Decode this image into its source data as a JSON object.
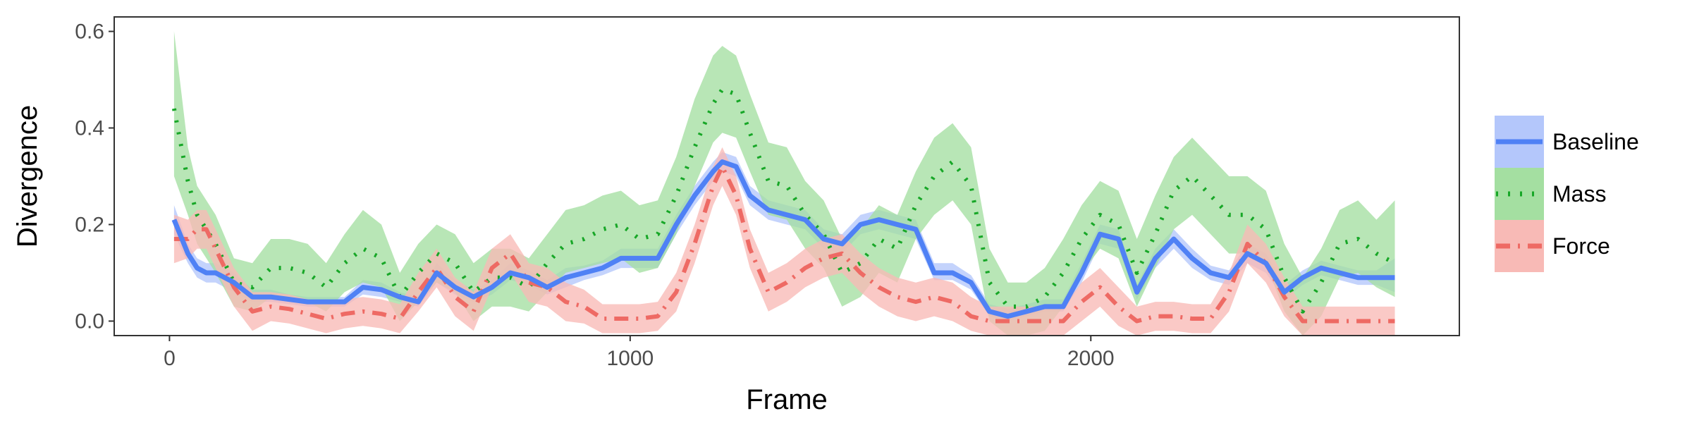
{
  "chart_data": {
    "type": "line",
    "title": "",
    "xlabel": "Frame",
    "ylabel": "Divergence",
    "xlim": [
      -120,
      2800
    ],
    "ylim": [
      -0.03,
      0.63
    ],
    "xticks": [
      0,
      1000,
      2000
    ],
    "xtick_labels": [
      "0",
      "1000",
      "2000"
    ],
    "yticks": [
      0.0,
      0.2,
      0.4,
      0.6
    ],
    "ytick_labels": [
      "0.0",
      "0.2",
      "0.4",
      "0.6"
    ],
    "grid": false,
    "legend_position": "right",
    "x": [
      10,
      40,
      60,
      80,
      100,
      140,
      180,
      220,
      260,
      300,
      340,
      380,
      420,
      460,
      500,
      540,
      580,
      620,
      660,
      700,
      740,
      780,
      820,
      860,
      900,
      940,
      980,
      1020,
      1060,
      1100,
      1140,
      1180,
      1200,
      1230,
      1260,
      1300,
      1340,
      1380,
      1420,
      1460,
      1500,
      1540,
      1580,
      1620,
      1660,
      1700,
      1740,
      1780,
      1820,
      1860,
      1900,
      1940,
      1980,
      2020,
      2060,
      2100,
      2140,
      2180,
      2220,
      2260,
      2300,
      2340,
      2380,
      2420,
      2460,
      2500,
      2540,
      2580,
      2620,
      2660
    ],
    "series": [
      {
        "name": "Baseline",
        "color": "#4f81f5",
        "band_color": "#b4c7fb",
        "dash": "solid",
        "values": [
          0.21,
          0.14,
          0.11,
          0.1,
          0.1,
          0.08,
          0.05,
          0.05,
          0.045,
          0.04,
          0.04,
          0.04,
          0.07,
          0.065,
          0.05,
          0.04,
          0.1,
          0.07,
          0.05,
          0.07,
          0.1,
          0.09,
          0.07,
          0.09,
          0.1,
          0.11,
          0.13,
          0.13,
          0.13,
          0.2,
          0.26,
          0.31,
          0.33,
          0.32,
          0.26,
          0.23,
          0.22,
          0.21,
          0.17,
          0.16,
          0.2,
          0.21,
          0.2,
          0.19,
          0.1,
          0.1,
          0.08,
          0.02,
          0.01,
          0.02,
          0.03,
          0.03,
          0.1,
          0.18,
          0.17,
          0.06,
          0.13,
          0.17,
          0.13,
          0.1,
          0.09,
          0.14,
          0.12,
          0.06,
          0.09,
          0.11,
          0.1,
          0.09,
          0.09,
          0.09
        ],
        "lower": [
          0.18,
          0.12,
          0.09,
          0.08,
          0.08,
          0.06,
          0.04,
          0.04,
          0.035,
          0.03,
          0.03,
          0.03,
          0.055,
          0.05,
          0.04,
          0.03,
          0.08,
          0.055,
          0.04,
          0.055,
          0.085,
          0.075,
          0.055,
          0.07,
          0.085,
          0.095,
          0.11,
          0.11,
          0.11,
          0.18,
          0.24,
          0.29,
          0.31,
          0.3,
          0.24,
          0.21,
          0.2,
          0.19,
          0.15,
          0.14,
          0.18,
          0.19,
          0.18,
          0.17,
          0.085,
          0.085,
          0.065,
          0.01,
          0.0,
          0.01,
          0.02,
          0.02,
          0.08,
          0.16,
          0.15,
          0.045,
          0.11,
          0.15,
          0.11,
          0.085,
          0.075,
          0.12,
          0.1,
          0.045,
          0.075,
          0.095,
          0.085,
          0.075,
          0.075,
          0.06
        ],
        "upper": [
          0.24,
          0.16,
          0.13,
          0.12,
          0.12,
          0.1,
          0.065,
          0.065,
          0.055,
          0.05,
          0.05,
          0.05,
          0.085,
          0.08,
          0.06,
          0.05,
          0.12,
          0.085,
          0.065,
          0.085,
          0.12,
          0.105,
          0.085,
          0.11,
          0.115,
          0.125,
          0.15,
          0.15,
          0.15,
          0.22,
          0.28,
          0.33,
          0.35,
          0.34,
          0.28,
          0.25,
          0.24,
          0.23,
          0.19,
          0.18,
          0.22,
          0.23,
          0.22,
          0.21,
          0.12,
          0.12,
          0.095,
          0.035,
          0.025,
          0.035,
          0.045,
          0.045,
          0.12,
          0.2,
          0.19,
          0.075,
          0.15,
          0.19,
          0.15,
          0.115,
          0.105,
          0.16,
          0.14,
          0.075,
          0.105,
          0.125,
          0.115,
          0.105,
          0.105,
          0.13
        ]
      },
      {
        "name": "Mass",
        "color": "#17a727",
        "band_color": "#a4dfa1",
        "dash": "dotted",
        "values": [
          0.44,
          0.29,
          0.22,
          0.19,
          0.16,
          0.08,
          0.07,
          0.11,
          0.11,
          0.1,
          0.07,
          0.12,
          0.15,
          0.13,
          0.05,
          0.1,
          0.14,
          0.12,
          0.06,
          0.09,
          0.09,
          0.07,
          0.12,
          0.16,
          0.17,
          0.19,
          0.2,
          0.17,
          0.18,
          0.26,
          0.36,
          0.45,
          0.48,
          0.47,
          0.39,
          0.29,
          0.28,
          0.22,
          0.18,
          0.1,
          0.12,
          0.17,
          0.15,
          0.24,
          0.3,
          0.33,
          0.28,
          0.08,
          0.03,
          0.03,
          0.05,
          0.1,
          0.17,
          0.22,
          0.2,
          0.1,
          0.18,
          0.27,
          0.3,
          0.26,
          0.22,
          0.22,
          0.19,
          0.09,
          0.02,
          0.08,
          0.16,
          0.17,
          0.14,
          0.12
        ],
        "lower": [
          0.3,
          0.22,
          0.16,
          0.13,
          0.1,
          0.03,
          0.02,
          0.05,
          0.05,
          0.04,
          0.02,
          0.06,
          0.08,
          0.07,
          0.0,
          0.04,
          0.08,
          0.06,
          0.0,
          0.03,
          0.03,
          0.02,
          0.06,
          0.1,
          0.11,
          0.12,
          0.13,
          0.1,
          0.11,
          0.18,
          0.28,
          0.37,
          0.39,
          0.38,
          0.31,
          0.22,
          0.21,
          0.15,
          0.11,
          0.03,
          0.05,
          0.1,
          0.08,
          0.17,
          0.22,
          0.25,
          0.2,
          0.0,
          -0.03,
          -0.03,
          -0.02,
          0.03,
          0.1,
          0.15,
          0.13,
          0.03,
          0.11,
          0.19,
          0.22,
          0.18,
          0.14,
          0.14,
          0.12,
          0.02,
          -0.03,
          0.01,
          0.09,
          0.1,
          0.07,
          0.05
        ],
        "upper": [
          0.6,
          0.36,
          0.28,
          0.25,
          0.22,
          0.13,
          0.12,
          0.17,
          0.17,
          0.16,
          0.12,
          0.18,
          0.23,
          0.2,
          0.1,
          0.16,
          0.2,
          0.18,
          0.12,
          0.15,
          0.15,
          0.13,
          0.18,
          0.23,
          0.24,
          0.26,
          0.27,
          0.24,
          0.25,
          0.34,
          0.46,
          0.55,
          0.57,
          0.55,
          0.47,
          0.37,
          0.36,
          0.29,
          0.25,
          0.17,
          0.19,
          0.24,
          0.22,
          0.31,
          0.38,
          0.41,
          0.36,
          0.15,
          0.08,
          0.08,
          0.11,
          0.17,
          0.24,
          0.29,
          0.27,
          0.17,
          0.26,
          0.34,
          0.38,
          0.34,
          0.3,
          0.3,
          0.27,
          0.16,
          0.09,
          0.15,
          0.23,
          0.25,
          0.21,
          0.25
        ]
      },
      {
        "name": "Force",
        "color": "#ee6a64",
        "band_color": "#f8bab6",
        "dash": "dashdot",
        "values": [
          0.17,
          0.17,
          0.19,
          0.19,
          0.15,
          0.07,
          0.02,
          0.03,
          0.025,
          0.015,
          0.005,
          0.015,
          0.02,
          0.015,
          0.005,
          0.06,
          0.11,
          0.05,
          0.02,
          0.11,
          0.14,
          0.08,
          0.07,
          0.04,
          0.03,
          0.005,
          0.005,
          0.005,
          0.01,
          0.06,
          0.16,
          0.28,
          0.32,
          0.26,
          0.15,
          0.06,
          0.08,
          0.11,
          0.13,
          0.14,
          0.1,
          0.07,
          0.05,
          0.04,
          0.05,
          0.04,
          0.01,
          0.0,
          0.0,
          0.0,
          0.0,
          0.0,
          0.04,
          0.07,
          0.03,
          0.0,
          0.01,
          0.01,
          0.005,
          0.005,
          0.06,
          0.16,
          0.12,
          0.05,
          0.0,
          0.0,
          0.0,
          0.0,
          0.0,
          0.0
        ],
        "lower": [
          0.12,
          0.13,
          0.15,
          0.15,
          0.11,
          0.03,
          -0.02,
          0.0,
          -0.005,
          -0.015,
          -0.025,
          -0.015,
          -0.01,
          -0.015,
          -0.025,
          0.02,
          0.07,
          0.01,
          -0.02,
          0.07,
          0.1,
          0.04,
          0.03,
          0.0,
          -0.005,
          -0.025,
          -0.025,
          -0.025,
          -0.02,
          0.02,
          0.12,
          0.24,
          0.28,
          0.22,
          0.11,
          0.02,
          0.04,
          0.07,
          0.09,
          0.1,
          0.06,
          0.03,
          0.01,
          0.0,
          0.01,
          0.0,
          -0.02,
          -0.03,
          -0.03,
          -0.03,
          -0.03,
          -0.03,
          0.0,
          0.03,
          -0.01,
          -0.03,
          -0.02,
          -0.02,
          -0.025,
          -0.025,
          0.02,
          0.12,
          0.08,
          0.01,
          -0.03,
          -0.03,
          -0.03,
          -0.03,
          -0.03,
          -0.03
        ],
        "upper": [
          0.22,
          0.21,
          0.23,
          0.23,
          0.19,
          0.11,
          0.06,
          0.06,
          0.055,
          0.045,
          0.035,
          0.045,
          0.05,
          0.045,
          0.035,
          0.1,
          0.15,
          0.09,
          0.06,
          0.15,
          0.18,
          0.12,
          0.11,
          0.08,
          0.065,
          0.035,
          0.035,
          0.035,
          0.04,
          0.1,
          0.2,
          0.32,
          0.36,
          0.3,
          0.19,
          0.1,
          0.12,
          0.15,
          0.17,
          0.18,
          0.14,
          0.11,
          0.09,
          0.08,
          0.09,
          0.08,
          0.05,
          0.03,
          0.03,
          0.03,
          0.03,
          0.03,
          0.08,
          0.11,
          0.07,
          0.03,
          0.04,
          0.04,
          0.035,
          0.035,
          0.1,
          0.2,
          0.16,
          0.09,
          0.03,
          0.03,
          0.03,
          0.03,
          0.03,
          0.03
        ]
      }
    ]
  }
}
